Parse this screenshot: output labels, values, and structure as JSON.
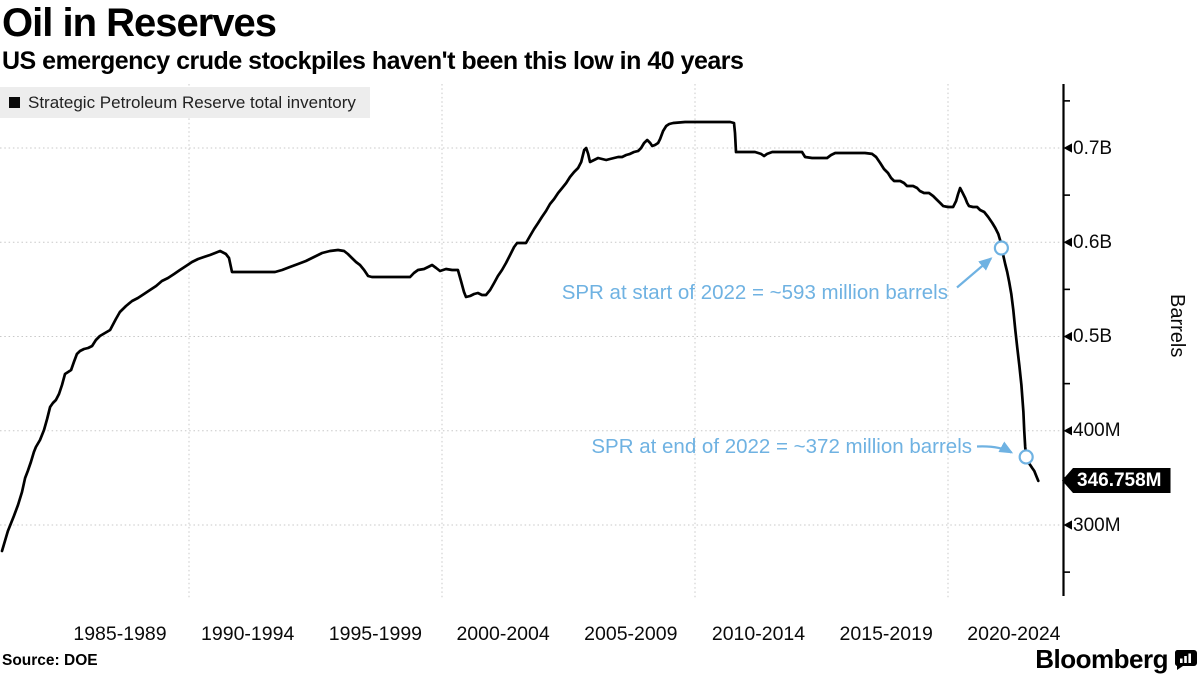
{
  "header": {
    "title": "Oil in Reserves",
    "subtitle": "US emergency crude stockpiles haven't been this low in 40 years"
  },
  "legend": {
    "label": "Strategic Petroleum Reserve total inventory",
    "swatch_icon": "black-square-icon"
  },
  "footer": {
    "source": "Source: DOE",
    "brand": "Bloomberg"
  },
  "colors": {
    "accent_blue": "#6fb2e2",
    "line": "#000000",
    "grid": "#c8c8c8",
    "legend_bg": "#ededed",
    "badge_bg": "#000000",
    "badge_text": "#ffffff"
  },
  "y_axis": {
    "unit_label": "Barrels",
    "current_badge": {
      "label": "346.758M",
      "value": 346.758
    }
  },
  "x_axis": {
    "labels": [
      "1985-1989",
      "1990-1994",
      "1995-1999",
      "2000-2004",
      "2005-2009",
      "2010-2014",
      "2015-2019",
      "2020-2024"
    ]
  },
  "chart_data": {
    "type": "line",
    "title": "Oil in Reserves",
    "subtitle": "US emergency crude stockpiles haven't been this low in 40 years",
    "ylabel": "Barrels",
    "xlabel": "",
    "unit": "million barrels",
    "x_range": [
      1982.5,
      2024.5
    ],
    "ylim": [
      225,
      775
    ],
    "grid": true,
    "legend_position": "top-left",
    "y_ticks": [
      {
        "value": 700,
        "label": "0.7B"
      },
      {
        "value": 600,
        "label": "0.6B"
      },
      {
        "value": 500,
        "label": "0.5B"
      },
      {
        "value": 400,
        "label": "400M"
      },
      {
        "value": 300,
        "label": "300M"
      }
    ],
    "y_minor_ticks": [
      750,
      650,
      550,
      450,
      350,
      250
    ],
    "x_gridline_years": [
      1990,
      2000,
      2010,
      2020
    ],
    "annotations": [
      {
        "text": "SPR at start of 2022 = ~593 million barrels",
        "year": 2022.11,
        "value": 593.9
      },
      {
        "text": "SPR at end of 2022 = ~372 million barrels",
        "year": 2023.09,
        "value": 372.2
      }
    ],
    "current_value": 346.758,
    "series": [
      {
        "name": "Strategic Petroleum Reserve total inventory",
        "points": [
          [
            1982.61,
            272.4
          ],
          [
            1982.84,
            293.6
          ],
          [
            1983.08,
            309.5
          ],
          [
            1983.24,
            321.2
          ],
          [
            1983.4,
            335.0
          ],
          [
            1983.52,
            349.9
          ],
          [
            1983.63,
            357.3
          ],
          [
            1983.75,
            366.8
          ],
          [
            1983.87,
            377.5
          ],
          [
            1983.95,
            382.8
          ],
          [
            1984.11,
            390.2
          ],
          [
            1984.27,
            400.8
          ],
          [
            1984.39,
            412.5
          ],
          [
            1984.51,
            425.2
          ],
          [
            1984.62,
            429.4
          ],
          [
            1984.74,
            432.6
          ],
          [
            1984.86,
            439.0
          ],
          [
            1984.98,
            448.5
          ],
          [
            1985.1,
            460.2
          ],
          [
            1985.22,
            462.3
          ],
          [
            1985.34,
            464.5
          ],
          [
            1985.45,
            472.9
          ],
          [
            1985.57,
            481.4
          ],
          [
            1985.69,
            484.6
          ],
          [
            1985.85,
            486.7
          ],
          [
            1986.01,
            487.8
          ],
          [
            1986.17,
            489.9
          ],
          [
            1986.32,
            496.3
          ],
          [
            1986.48,
            500.5
          ],
          [
            1986.68,
            503.7
          ],
          [
            1986.88,
            506.9
          ],
          [
            1987.11,
            518.6
          ],
          [
            1987.27,
            526.0
          ],
          [
            1987.51,
            532.4
          ],
          [
            1987.75,
            537.7
          ],
          [
            1987.98,
            540.8
          ],
          [
            1988.22,
            545.1
          ],
          [
            1988.46,
            549.3
          ],
          [
            1988.7,
            553.6
          ],
          [
            1988.93,
            558.9
          ],
          [
            1989.17,
            562.1
          ],
          [
            1989.41,
            566.3
          ],
          [
            1989.64,
            570.6
          ],
          [
            1989.88,
            574.8
          ],
          [
            1990.12,
            579.0
          ],
          [
            1990.36,
            582.2
          ],
          [
            1990.59,
            584.4
          ],
          [
            1990.83,
            586.5
          ],
          [
            1991.03,
            588.6
          ],
          [
            1991.23,
            590.7
          ],
          [
            1991.46,
            587.5
          ],
          [
            1991.58,
            583.3
          ],
          [
            1991.7,
            568.4
          ],
          [
            1992.21,
            568.4
          ],
          [
            1992.81,
            568.4
          ],
          [
            1993.4,
            568.4
          ],
          [
            1993.68,
            570.6
          ],
          [
            1993.99,
            573.7
          ],
          [
            1994.31,
            576.9
          ],
          [
            1994.62,
            580.1
          ],
          [
            1994.94,
            584.4
          ],
          [
            1995.26,
            588.6
          ],
          [
            1995.57,
            590.7
          ],
          [
            1995.89,
            591.8
          ],
          [
            1996.13,
            590.7
          ],
          [
            1996.28,
            587.5
          ],
          [
            1996.44,
            583.3
          ],
          [
            1996.6,
            579.0
          ],
          [
            1996.76,
            575.9
          ],
          [
            1996.92,
            570.6
          ],
          [
            1997.08,
            564.2
          ],
          [
            1997.23,
            563.1
          ],
          [
            1997.75,
            563.1
          ],
          [
            1998.34,
            563.1
          ],
          [
            1998.74,
            563.1
          ],
          [
            1998.89,
            567.4
          ],
          [
            1999.05,
            570.6
          ],
          [
            1999.29,
            571.6
          ],
          [
            1999.45,
            573.7
          ],
          [
            1999.61,
            575.9
          ],
          [
            1999.77,
            572.7
          ],
          [
            1999.92,
            569.5
          ],
          [
            2000.16,
            571.6
          ],
          [
            2000.4,
            570.6
          ],
          [
            2000.63,
            570.6
          ],
          [
            2000.75,
            558.9
          ],
          [
            2000.87,
            547.2
          ],
          [
            2000.95,
            541.9
          ],
          [
            2001.11,
            543.0
          ],
          [
            2001.27,
            545.1
          ],
          [
            2001.42,
            546.2
          ],
          [
            2001.58,
            544.0
          ],
          [
            2001.74,
            544.0
          ],
          [
            2001.9,
            549.3
          ],
          [
            2002.06,
            556.8
          ],
          [
            2002.21,
            564.2
          ],
          [
            2002.37,
            570.6
          ],
          [
            2002.53,
            578.0
          ],
          [
            2002.69,
            586.5
          ],
          [
            2002.85,
            595.0
          ],
          [
            2002.97,
            599.2
          ],
          [
            2003.16,
            599.2
          ],
          [
            2003.32,
            599.2
          ],
          [
            2003.48,
            606.6
          ],
          [
            2003.64,
            614.1
          ],
          [
            2003.8,
            620.4
          ],
          [
            2003.95,
            626.8
          ],
          [
            2004.11,
            633.2
          ],
          [
            2004.27,
            640.6
          ],
          [
            2004.43,
            645.9
          ],
          [
            2004.59,
            652.3
          ],
          [
            2004.75,
            657.6
          ],
          [
            2004.91,
            662.9
          ],
          [
            2005.06,
            669.2
          ],
          [
            2005.22,
            674.5
          ],
          [
            2005.38,
            678.8
          ],
          [
            2005.5,
            685.1
          ],
          [
            2005.62,
            697.9
          ],
          [
            2005.7,
            700.0
          ],
          [
            2005.78,
            693.6
          ],
          [
            2005.85,
            685.1
          ],
          [
            2006.01,
            687.3
          ],
          [
            2006.17,
            689.4
          ],
          [
            2006.33,
            688.3
          ],
          [
            2006.49,
            687.3
          ],
          [
            2006.64,
            688.3
          ],
          [
            2006.8,
            689.4
          ],
          [
            2006.96,
            690.5
          ],
          [
            2007.12,
            690.5
          ],
          [
            2007.28,
            692.6
          ],
          [
            2007.43,
            693.7
          ],
          [
            2007.59,
            695.8
          ],
          [
            2007.75,
            696.8
          ],
          [
            2007.87,
            700.0
          ],
          [
            2007.99,
            705.3
          ],
          [
            2008.11,
            708.5
          ],
          [
            2008.23,
            705.3
          ],
          [
            2008.31,
            702.1
          ],
          [
            2008.42,
            703.2
          ],
          [
            2008.54,
            705.3
          ],
          [
            2008.62,
            709.5
          ],
          [
            2008.74,
            718.0
          ],
          [
            2008.86,
            723.3
          ],
          [
            2008.98,
            725.5
          ],
          [
            2009.14,
            726.5
          ],
          [
            2009.61,
            727.6
          ],
          [
            2010.2,
            727.6
          ],
          [
            2010.79,
            727.6
          ],
          [
            2011.39,
            727.6
          ],
          [
            2011.54,
            726.5
          ],
          [
            2011.58,
            715.9
          ],
          [
            2011.62,
            695.8
          ],
          [
            2011.98,
            695.8
          ],
          [
            2012.37,
            695.8
          ],
          [
            2012.61,
            693.7
          ],
          [
            2012.73,
            691.5
          ],
          [
            2012.85,
            693.7
          ],
          [
            2013.05,
            695.8
          ],
          [
            2013.44,
            695.8
          ],
          [
            2013.84,
            695.8
          ],
          [
            2014.23,
            695.8
          ],
          [
            2014.35,
            690.5
          ],
          [
            2014.63,
            689.4
          ],
          [
            2014.94,
            689.4
          ],
          [
            2015.22,
            689.4
          ],
          [
            2015.38,
            692.6
          ],
          [
            2015.54,
            694.7
          ],
          [
            2015.93,
            694.7
          ],
          [
            2016.33,
            694.7
          ],
          [
            2016.72,
            694.7
          ],
          [
            2017.0,
            693.7
          ],
          [
            2017.16,
            690.5
          ],
          [
            2017.32,
            684.1
          ],
          [
            2017.47,
            677.7
          ],
          [
            2017.63,
            673.5
          ],
          [
            2017.75,
            668.2
          ],
          [
            2017.87,
            665.0
          ],
          [
            2018.11,
            665.0
          ],
          [
            2018.26,
            662.9
          ],
          [
            2018.38,
            659.7
          ],
          [
            2018.62,
            659.7
          ],
          [
            2018.78,
            657.6
          ],
          [
            2018.89,
            654.4
          ],
          [
            2019.05,
            652.3
          ],
          [
            2019.25,
            652.3
          ],
          [
            2019.41,
            649.1
          ],
          [
            2019.53,
            645.9
          ],
          [
            2019.69,
            641.6
          ],
          [
            2019.81,
            638.4
          ],
          [
            2020.0,
            637.4
          ],
          [
            2020.2,
            637.4
          ],
          [
            2020.32,
            643.8
          ],
          [
            2020.4,
            651.2
          ],
          [
            2020.48,
            657.6
          ],
          [
            2020.56,
            653.3
          ],
          [
            2020.68,
            646.9
          ],
          [
            2020.76,
            641.6
          ],
          [
            2020.83,
            638.4
          ],
          [
            2020.99,
            637.4
          ],
          [
            2021.15,
            637.4
          ],
          [
            2021.27,
            634.2
          ],
          [
            2021.43,
            632.1
          ],
          [
            2021.59,
            626.8
          ],
          [
            2021.75,
            620.4
          ],
          [
            2021.87,
            615.1
          ],
          [
            2021.99,
            608.8
          ],
          [
            2022.07,
            601.3
          ],
          [
            2022.11,
            593.9
          ],
          [
            2022.19,
            585.4
          ],
          [
            2022.26,
            576.9
          ],
          [
            2022.34,
            568.4
          ],
          [
            2022.42,
            557.8
          ],
          [
            2022.5,
            545.1
          ],
          [
            2022.58,
            528.1
          ],
          [
            2022.66,
            506.9
          ],
          [
            2022.74,
            487.8
          ],
          [
            2022.82,
            469.7
          ],
          [
            2022.9,
            448.5
          ],
          [
            2022.98,
            419.9
          ],
          [
            2023.01,
            400.8
          ],
          [
            2023.05,
            382.8
          ],
          [
            2023.09,
            372.2
          ],
          [
            2023.17,
            366.8
          ],
          [
            2023.25,
            363.7
          ],
          [
            2023.33,
            360.5
          ],
          [
            2023.41,
            357.3
          ],
          [
            2023.49,
            352.0
          ],
          [
            2023.57,
            346.8
          ]
        ]
      }
    ]
  }
}
